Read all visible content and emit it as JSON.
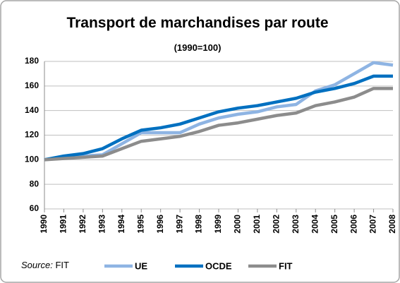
{
  "chart_data": {
    "type": "line",
    "title": "Transport de marchandises par route",
    "subtitle": "(1990=100)",
    "categories": [
      "1990",
      "1991",
      "1992",
      "1993",
      "1994",
      "1995",
      "1996",
      "1997",
      "1998",
      "1999",
      "2000",
      "2001",
      "2002",
      "2003",
      "2004",
      "2005",
      "2006",
      "2007",
      "2008"
    ],
    "series": [
      {
        "name": "UE",
        "color": "#8eb4e3",
        "values": [
          100,
          102,
          103,
          104,
          113,
          122,
          122,
          122,
          129,
          134,
          137,
          139,
          143,
          145,
          156,
          161,
          170,
          179,
          177
        ]
      },
      {
        "name": "OCDE",
        "color": "#0070c0",
        "values": [
          100,
          103,
          105,
          109,
          117,
          124,
          126,
          129,
          134,
          139,
          142,
          144,
          147,
          150,
          155,
          158,
          162,
          168,
          168
        ]
      },
      {
        "name": "FIT",
        "color": "#8c8c8c",
        "values": [
          100,
          101,
          102,
          103,
          109,
          115,
          117,
          119,
          123,
          128,
          130,
          133,
          136,
          138,
          144,
          147,
          151,
          158,
          158
        ]
      }
    ],
    "ylim": [
      60,
      180
    ],
    "yticks": [
      60,
      80,
      100,
      120,
      140,
      160,
      180
    ],
    "grid": true,
    "source_label": "Source:",
    "source": "FIT"
  }
}
